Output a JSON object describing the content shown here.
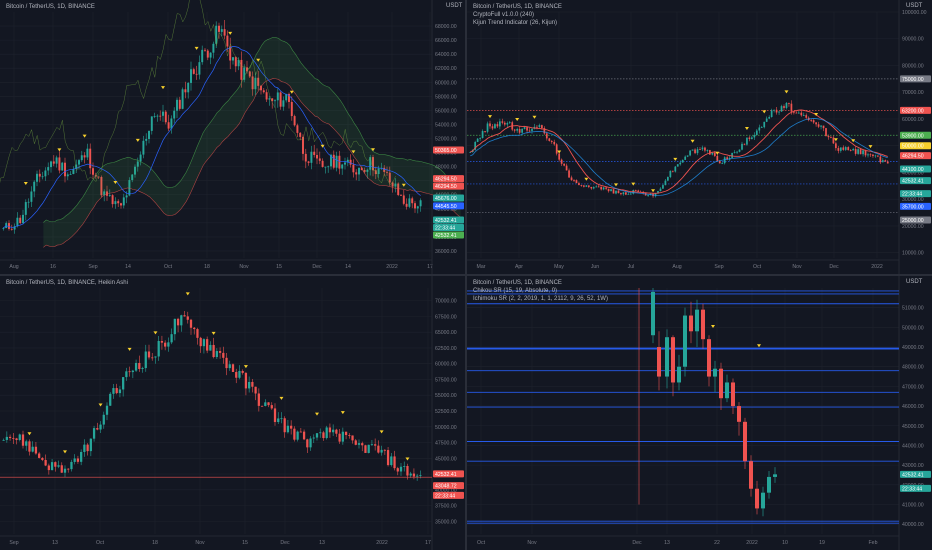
{
  "colors": {
    "bg": "#131722",
    "up": "#26a69a",
    "down": "#ef5350",
    "grid": "#1e222d",
    "axis": "#787b86",
    "accent": "#2962ff",
    "signal": "#f7d02c"
  },
  "panes": [
    {
      "id": "p1",
      "legend": [
        "Bitcoin / TetherUS, 1D, BINANCE"
      ],
      "unit": "USDT",
      "price_range": [
        35000,
        70000
      ],
      "price_ticks": [
        "68000.00",
        "66000.00",
        "64000.00",
        "62000.00",
        "60000.00",
        "58000.00",
        "56000.00",
        "54000.00",
        "52000.00",
        "50000.00",
        "48000.00",
        "46000.00",
        "44000.00",
        "42000.00",
        "40000.00",
        "38000.00",
        "36000.00"
      ],
      "x_ticks": [
        "Aug",
        "16",
        "Sep",
        "14",
        "Oct",
        "18",
        "Nov",
        "15",
        "Dec",
        "14",
        "2022",
        "17"
      ],
      "price_labels": [
        {
          "text": "50365.00",
          "color": "#ef5350",
          "value": 50365
        },
        {
          "text": "46294.50",
          "color": "#ef5350",
          "value": 46294.5
        },
        {
          "text": "46294.50",
          "color": "#ef5350",
          "value": 46294.5
        },
        {
          "text": "45676.00",
          "color": "#26a69a",
          "value": 45676
        },
        {
          "text": "44545.50",
          "color": "#2962ff",
          "value": 44545.5
        },
        {
          "text": "42532.41",
          "color": "#26a69a",
          "value": 42532.41
        },
        {
          "text": "22:33:44",
          "color": "#26a69a",
          "value": 42532.41
        },
        {
          "text": "42532.41",
          "color": "#4caf50",
          "value": 42532.41
        }
      ],
      "indicators": {
        "ichimoku": true,
        "baseline": true,
        "signals": true
      }
    },
    {
      "id": "p2",
      "legend": [
        "Bitcoin / TetherUS, 1D, BINANCE",
        "CryptoFull v1.0.0 (240)",
        "Kijun Trend Indicator (26, Kijun)"
      ],
      "unit": "USDT",
      "price_range": [
        8000,
        100000
      ],
      "price_ticks": [
        "100000.00",
        "90000.00",
        "80000.00",
        "70000.00",
        "60000.00",
        "50000.00",
        "40000.00",
        "30000.00",
        "20000.00",
        "10000.00"
      ],
      "x_ticks": [
        "Mar",
        "Apr",
        "May",
        "Jun",
        "Jul",
        "Aug",
        "Sep",
        "Oct",
        "Nov",
        "Dec",
        "2022"
      ],
      "price_labels": [
        {
          "text": "75000.00",
          "color": "#787b86",
          "value": 75000
        },
        {
          "text": "63200.00",
          "color": "#ef5350",
          "value": 63200
        },
        {
          "text": "53900.00",
          "color": "#4caf50",
          "value": 53900
        },
        {
          "text": "50000.00",
          "color": "#f7d02c",
          "value": 50000
        },
        {
          "text": "46294.50",
          "color": "#ef5350",
          "value": 46294.5
        },
        {
          "text": "44100.00",
          "color": "#26a69a",
          "value": 44100
        },
        {
          "text": "42532.41",
          "color": "#26a69a",
          "value": 42532.41
        },
        {
          "text": "22:33:44",
          "color": "#26a69a",
          "value": 40500
        },
        {
          "text": "35700.00",
          "color": "#2962ff",
          "value": 35700
        },
        {
          "text": "25000.00",
          "color": "#787b86",
          "value": 25000
        }
      ],
      "hlines": [
        {
          "value": 75000,
          "color": "#787b86"
        },
        {
          "value": 63200,
          "color": "#ef5350"
        },
        {
          "value": 53900,
          "color": "#4caf50"
        },
        {
          "value": 44100,
          "color": "#2962ff"
        },
        {
          "value": 35700,
          "color": "#2962ff"
        },
        {
          "value": 25000,
          "color": "#787b86"
        }
      ],
      "indicators": {
        "kijun": true,
        "signals": true
      }
    },
    {
      "id": "p3",
      "legend": [
        "Bitcoin / TetherUS, 1D, BINANCE, Heikin Ashi"
      ],
      "unit": "",
      "price_range": [
        33000,
        72000
      ],
      "price_ticks": [
        "70000.00",
        "67500.00",
        "65000.00",
        "62500.00",
        "60000.00",
        "57500.00",
        "55000.00",
        "52500.00",
        "50000.00",
        "47500.00",
        "45000.00",
        "42500.00",
        "40000.00",
        "37500.00",
        "35000.00"
      ],
      "x_ticks": [
        "Sep",
        "13",
        "Oct",
        "18",
        "Nov",
        "15",
        "Dec",
        "13",
        "2022",
        "17"
      ],
      "price_labels": [
        {
          "text": "42532.41",
          "color": "#ef5350",
          "value": 42532.41
        },
        {
          "text": "43048.72",
          "color": "#ef5350",
          "value": 43048.72
        },
        {
          "text": "22:33:44",
          "color": "#ef5350",
          "value": 41500
        }
      ],
      "indicators": {
        "signals": true,
        "baseline_value": 42000
      }
    },
    {
      "id": "p4",
      "legend": [
        "Bitcoin / TetherUS, 1D, BINANCE",
        "Chikou SR (15, 19, Absolute, 0)",
        "Ichimoku SR (2, 2, 2019, 1, 1, 2112, 9, 26, 52, 1W)"
      ],
      "unit": "USDT",
      "price_range": [
        39500,
        52000
      ],
      "price_ticks": [
        "51000.00",
        "50000.00",
        "49000.00",
        "48000.00",
        "47000.00",
        "46000.00",
        "45000.00",
        "44000.00",
        "43000.00",
        "42000.00",
        "41000.00",
        "40000.00"
      ],
      "x_ticks": [
        "Oct",
        "Nov",
        "Dec",
        "13",
        "22",
        "2022",
        "10",
        "19",
        "Feb"
      ],
      "price_labels": [
        {
          "text": "42532.41",
          "color": "#26a69a",
          "value": 42532.41
        },
        {
          "text": "22:33:44",
          "color": "#26a69a",
          "value": 42200
        }
      ],
      "hlines": [
        {
          "value": 51850,
          "color": "#2962ff"
        },
        {
          "value": 51700,
          "color": "#2962ff"
        },
        {
          "value": 51200,
          "color": "#2962ff"
        },
        {
          "value": 48950,
          "color": "#2962ff"
        },
        {
          "value": 48900,
          "color": "#2962ff"
        },
        {
          "value": 47800,
          "color": "#2962ff"
        },
        {
          "value": 46700,
          "color": "#2962ff"
        },
        {
          "value": 45950,
          "color": "#2962ff"
        },
        {
          "value": 44200,
          "color": "#2962ff"
        },
        {
          "value": 43200,
          "color": "#2962ff"
        },
        {
          "value": 40150,
          "color": "#2962ff"
        },
        {
          "value": 40050,
          "color": "#2962ff"
        }
      ],
      "indicators": {
        "signals": true,
        "zoomed": true
      }
    }
  ]
}
